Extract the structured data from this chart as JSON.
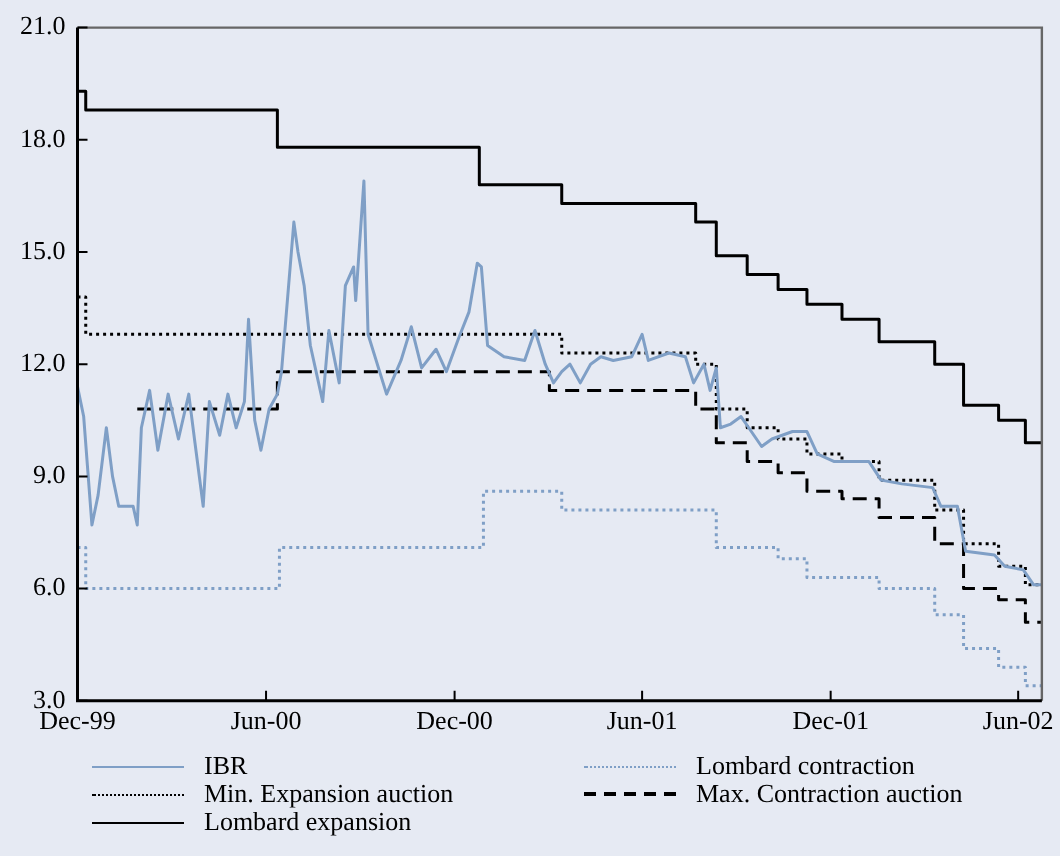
{
  "chart_data": {
    "type": "line",
    "xlim": [
      "1999-12-01",
      "2002-06-24"
    ],
    "ylim": [
      3,
      21
    ],
    "xticks": [
      {
        "value": "1999-12-01",
        "label": "Dec-99"
      },
      {
        "value": "2000-06-01",
        "label": "Jun-00"
      },
      {
        "value": "2000-12-01",
        "label": "Dec-00"
      },
      {
        "value": "2001-06-01",
        "label": "Jun-01"
      },
      {
        "value": "2001-12-01",
        "label": "Dec-01"
      },
      {
        "value": "2002-06-01",
        "label": "Jun-02"
      }
    ],
    "yticks": [
      {
        "value": 3,
        "label": "3.0"
      },
      {
        "value": 6,
        "label": "6.0"
      },
      {
        "value": 9,
        "label": "9.0"
      },
      {
        "value": 12,
        "label": "12.0"
      },
      {
        "value": 15,
        "label": "15.0"
      },
      {
        "value": 18,
        "label": "18.0"
      },
      {
        "value": 21,
        "label": "21.0"
      }
    ],
    "grid": false,
    "legend": "bottom",
    "marker": "none",
    "series": [
      {
        "name": "IBR",
        "type": "line",
        "color": "#7f9fc6",
        "line_style": "solid",
        "x": [
          "1999-12-01",
          "1999-12-07",
          "1999-12-15",
          "1999-12-21",
          "1999-12-29",
          "2000-01-04",
          "2000-01-10",
          "2000-01-24",
          "2000-01-28",
          "2000-02-01",
          "2000-02-09",
          "2000-02-17",
          "2000-02-27",
          "2000-03-08",
          "2000-03-18",
          "2000-03-24",
          "2000-04-01",
          "2000-04-07",
          "2000-04-17",
          "2000-04-25",
          "2000-05-03",
          "2000-05-11",
          "2000-05-15",
          "2000-05-21",
          "2000-05-27",
          "2000-06-04",
          "2000-06-12",
          "2000-06-16",
          "2000-06-28",
          "2000-07-02",
          "2000-07-08",
          "2000-07-14",
          "2000-07-26",
          "2000-08-01",
          "2000-08-11",
          "2000-08-17",
          "2000-08-25",
          "2000-08-27",
          "2000-09-04",
          "2000-09-08",
          "2000-09-26",
          "2000-10-10",
          "2000-10-20",
          "2000-10-30",
          "2000-11-13",
          "2000-11-23",
          "2000-12-05",
          "2000-12-15",
          "2000-12-23",
          "2000-12-27",
          "2001-01-02",
          "2001-01-18",
          "2001-02-07",
          "2001-02-17",
          "2001-02-27",
          "2001-03-07",
          "2001-03-15",
          "2001-03-23",
          "2001-04-02",
          "2001-04-12",
          "2001-04-22",
          "2001-05-04",
          "2001-05-22",
          "2001-06-01",
          "2001-06-07",
          "2001-06-27",
          "2001-07-13",
          "2001-07-21",
          "2001-07-31",
          "2001-08-06",
          "2001-08-12",
          "2001-08-16",
          "2001-08-26",
          "2001-09-05",
          "2001-09-15",
          "2001-09-25",
          "2001-10-05",
          "2001-10-25",
          "2001-11-08",
          "2001-11-18",
          "2001-12-04",
          "2002-01-07",
          "2002-01-19",
          "2002-02-08",
          "2002-03-10",
          "2002-03-18",
          "2002-04-03",
          "2002-04-11",
          "2002-05-09",
          "2002-05-19",
          "2002-06-06",
          "2002-06-16",
          "2002-06-24"
        ],
        "values": [
          11.4,
          10.6,
          7.7,
          8.5,
          10.3,
          9.0,
          8.2,
          8.2,
          7.7,
          10.3,
          11.3,
          9.7,
          11.2,
          10.0,
          11.2,
          9.9,
          8.2,
          11.0,
          10.1,
          11.2,
          10.3,
          11.0,
          13.2,
          10.5,
          9.7,
          10.8,
          11.2,
          11.8,
          15.8,
          15.0,
          14.1,
          12.5,
          11.0,
          12.9,
          11.5,
          14.1,
          14.6,
          13.7,
          16.9,
          12.8,
          11.2,
          12.1,
          13.0,
          11.9,
          12.4,
          11.8,
          12.7,
          13.4,
          14.7,
          14.6,
          12.5,
          12.2,
          12.1,
          12.9,
          12.0,
          11.5,
          11.8,
          12.0,
          11.5,
          12.0,
          12.2,
          12.1,
          12.2,
          12.8,
          12.1,
          12.3,
          12.2,
          11.5,
          12.0,
          11.3,
          11.9,
          10.3,
          10.4,
          10.6,
          10.2,
          9.8,
          10.0,
          10.2,
          10.2,
          9.6,
          9.4,
          9.4,
          8.9,
          8.8,
          8.7,
          8.2,
          8.2,
          7.0,
          6.9,
          6.6,
          6.5,
          6.1,
          6.1
        ]
      },
      {
        "name": "Min. Expansion auction",
        "type": "step",
        "color": "#000000",
        "line_style": "dotted",
        "x": [
          "1999-12-01",
          "1999-12-09",
          "2001-03-15",
          "2001-07-23",
          "2001-08-12",
          "2001-09-11",
          "2001-10-11",
          "2001-11-08",
          "2001-12-12",
          "2002-01-17",
          "2002-03-12",
          "2002-04-09",
          "2002-05-13",
          "2002-06-08",
          "2002-06-24"
        ],
        "values": [
          13.8,
          12.8,
          12.3,
          12.0,
          10.8,
          10.3,
          10.0,
          9.6,
          9.4,
          8.9,
          8.1,
          7.2,
          6.6,
          6.1,
          6.1
        ]
      },
      {
        "name": "Lombard expansion",
        "type": "step",
        "color": "#000000",
        "line_style": "solid",
        "x": [
          "1999-12-01",
          "1999-12-09",
          "2000-06-12",
          "2000-12-25",
          "2001-03-15",
          "2001-07-23",
          "2001-08-12",
          "2001-09-11",
          "2001-10-11",
          "2001-11-08",
          "2001-12-12",
          "2002-01-17",
          "2002-03-12",
          "2002-04-09",
          "2002-05-13",
          "2002-06-08",
          "2002-06-24"
        ],
        "values": [
          19.3,
          18.8,
          17.8,
          16.8,
          16.3,
          15.8,
          14.9,
          14.4,
          14.0,
          13.6,
          13.2,
          12.6,
          12.0,
          10.9,
          10.5,
          9.9,
          9.9
        ]
      },
      {
        "name": "Lombard contraction",
        "type": "step",
        "color": "#7f9fc6",
        "line_style": "dotted",
        "x": [
          "1999-12-01",
          "1999-12-09",
          "2000-06-14",
          "2000-12-29",
          "2001-03-15",
          "2001-08-12",
          "2001-10-11",
          "2001-11-08",
          "2002-01-17",
          "2002-03-12",
          "2002-04-09",
          "2002-05-13",
          "2002-06-08",
          "2002-06-24"
        ],
        "values": [
          7.1,
          6.0,
          7.1,
          8.6,
          8.1,
          7.1,
          6.8,
          6.3,
          6.0,
          5.3,
          4.4,
          3.9,
          3.4,
          3.4
        ]
      },
      {
        "name": "Max. Contraction auction",
        "type": "step",
        "color": "#000000",
        "line_style": "dashed",
        "x": [
          "2000-01-28",
          "2000-06-12",
          "2001-03-03",
          "2001-07-23",
          "2001-08-12",
          "2001-09-11",
          "2001-10-11",
          "2001-11-08",
          "2001-12-12",
          "2002-01-17",
          "2002-03-12",
          "2002-04-09",
          "2002-05-13",
          "2002-06-08",
          "2002-06-24"
        ],
        "values": [
          10.8,
          11.8,
          11.3,
          10.8,
          9.9,
          9.4,
          9.1,
          8.6,
          8.4,
          7.9,
          7.2,
          6.0,
          5.7,
          5.1,
          5.1
        ]
      }
    ]
  }
}
